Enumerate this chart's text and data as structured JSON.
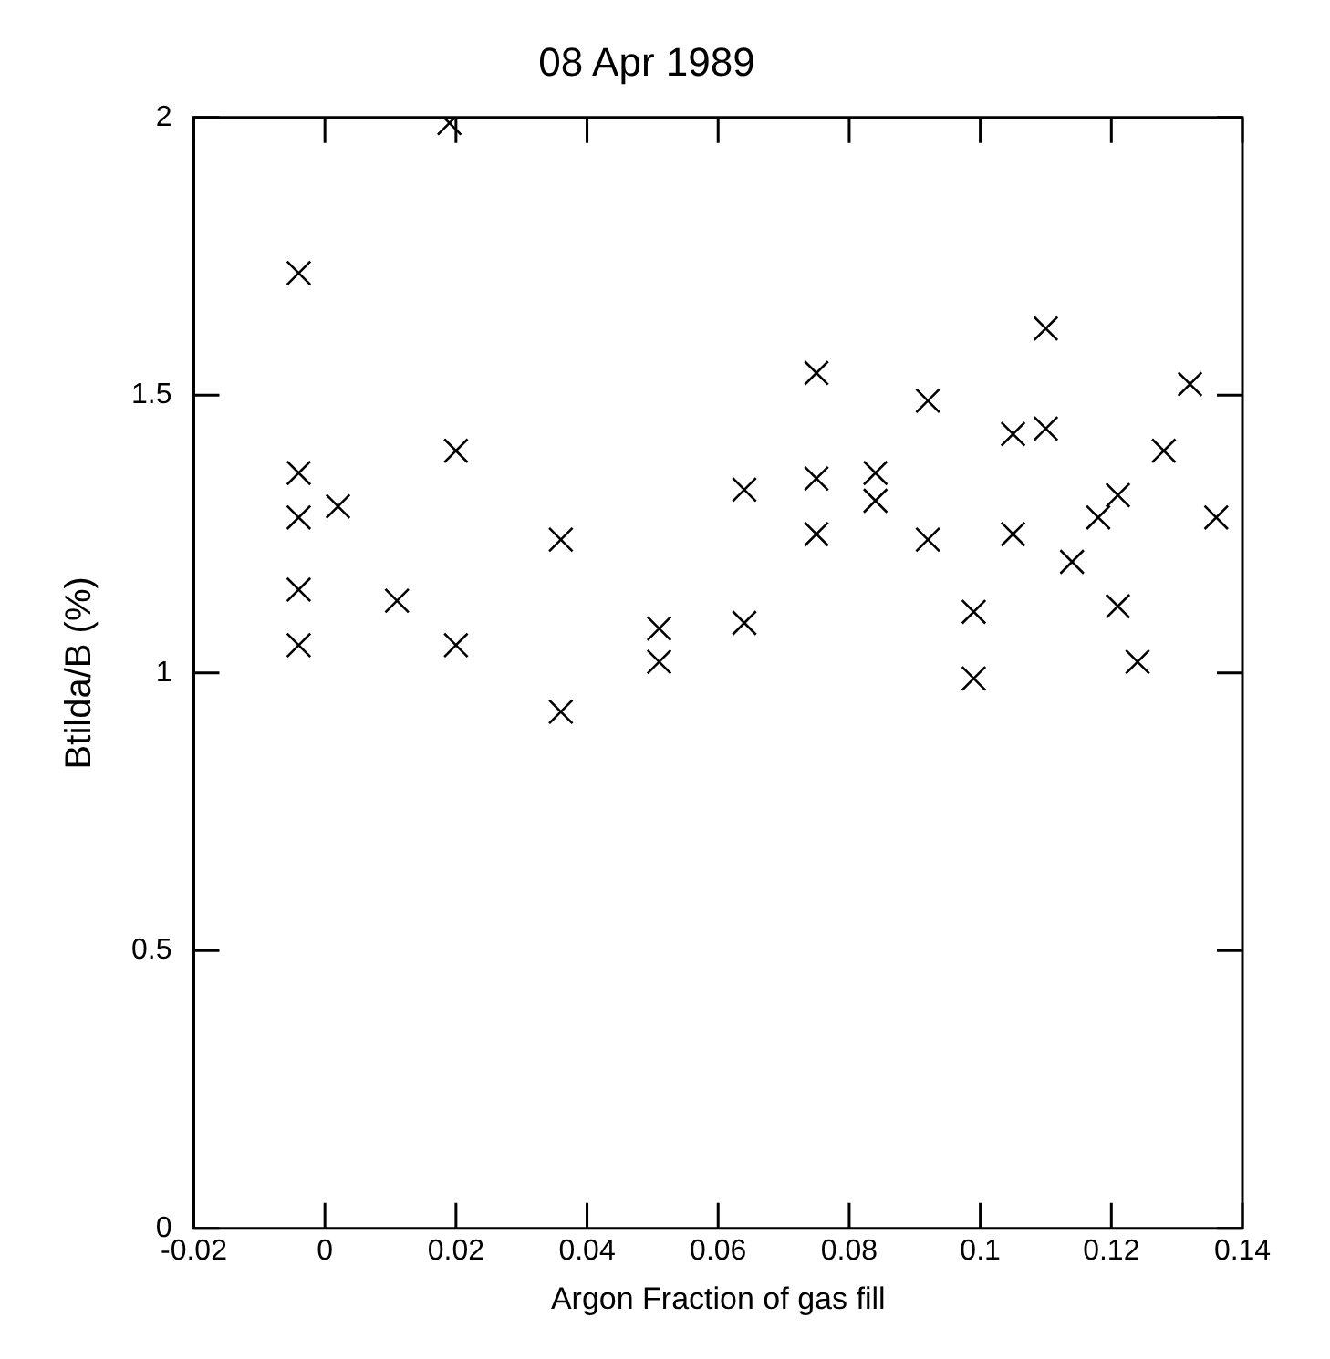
{
  "chart_data": {
    "type": "scatter",
    "title": "08 Apr 1989",
    "xlabel": "Argon Fraction of gas fill",
    "ylabel": "Btilda/B (%)",
    "x": [
      0.124,
      0.099,
      0.099,
      0.121,
      0.064,
      0.114,
      0.136,
      0.118,
      0.105,
      0.092,
      0.075,
      0.121,
      0.084,
      0.084,
      0.075,
      0.064,
      0.128,
      0.11,
      0.105,
      0.092,
      0.132,
      0.075,
      0.11,
      0.036,
      0.051,
      0.051,
      0.02,
      -0.004,
      0.011,
      -0.004,
      0.036,
      0.002,
      -0.004,
      -0.004,
      0.02,
      -0.004,
      0.019
    ],
    "values": [
      1.02,
      0.99,
      1.11,
      1.12,
      1.09,
      1.2,
      1.28,
      1.28,
      1.25,
      1.24,
      1.25,
      1.32,
      1.31,
      1.36,
      1.35,
      1.33,
      1.4,
      1.44,
      1.43,
      1.49,
      1.52,
      1.54,
      1.62,
      0.93,
      1.02,
      1.08,
      1.05,
      1.05,
      1.13,
      1.15,
      1.24,
      1.3,
      1.28,
      1.36,
      1.4,
      1.72,
      1.99
    ],
    "color": "#000000",
    "marker": "cross",
    "grid": false,
    "xlim": [
      -0.02,
      0.14
    ],
    "xticks": [
      -0.02,
      0,
      0.02,
      0.04,
      0.06,
      0.08,
      {
        "value": 0.1,
        "label": "0.1"
      },
      0.12,
      0.14
    ],
    "ylim": [
      0,
      2
    ],
    "yticks": [
      0,
      0.5,
      1,
      1.5,
      2
    ]
  }
}
